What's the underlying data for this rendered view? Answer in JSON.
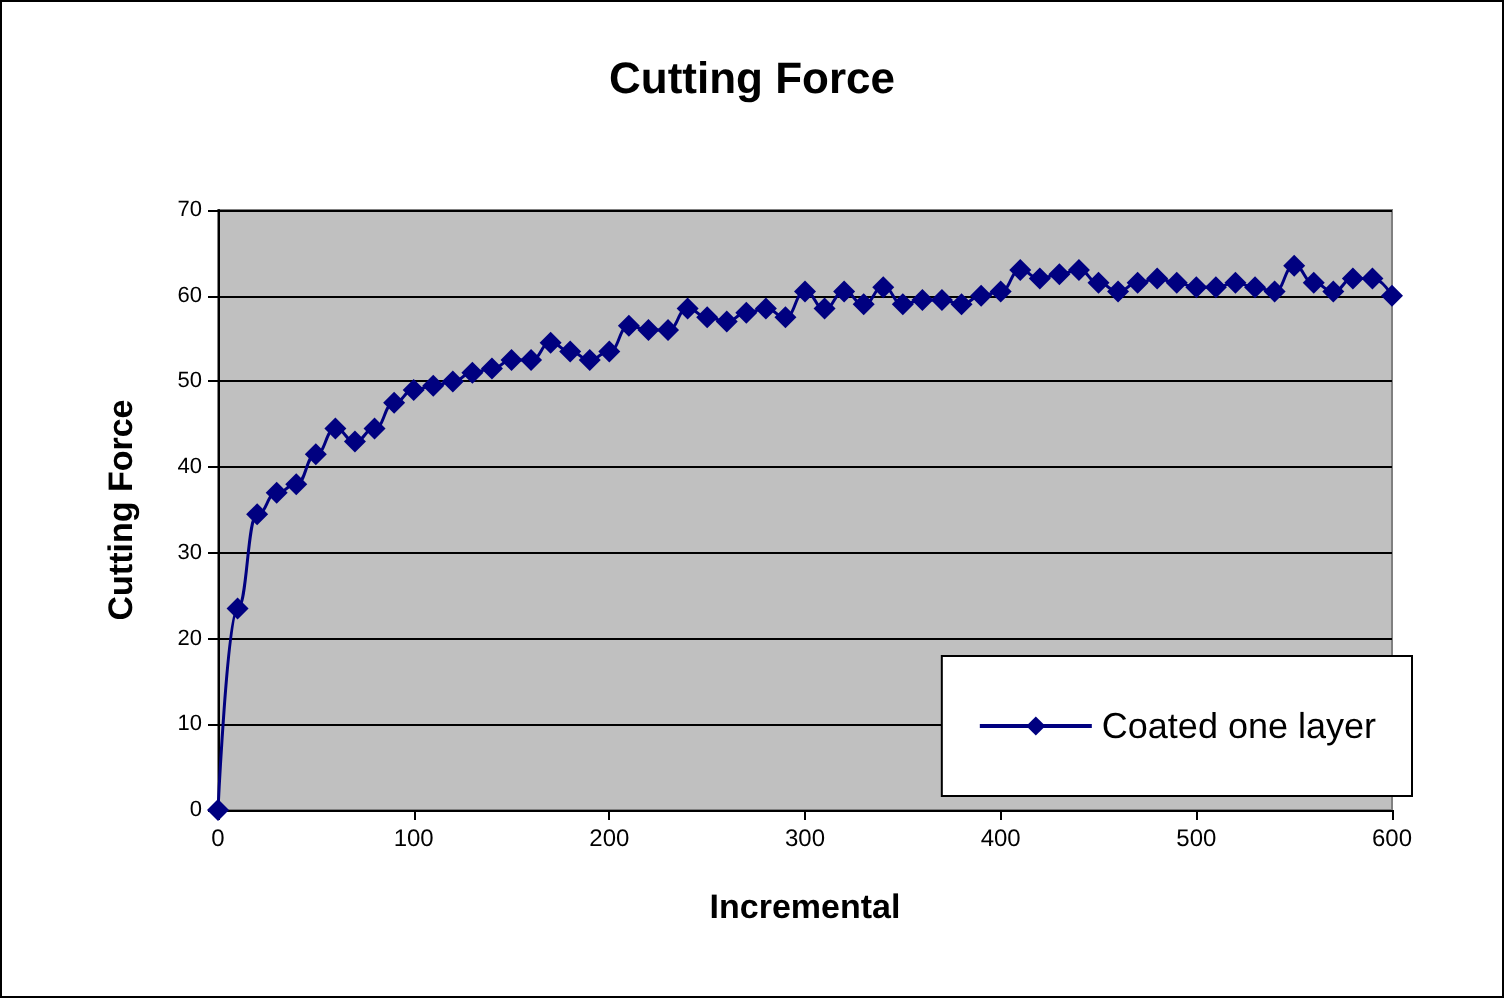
{
  "chart_data": {
    "type": "line",
    "title": "Cutting Force",
    "xlabel": "Incremental",
    "ylabel": "Cutting Force",
    "x": [
      0,
      10,
      20,
      30,
      40,
      50,
      60,
      70,
      80,
      90,
      100,
      110,
      120,
      130,
      140,
      150,
      160,
      170,
      180,
      190,
      200,
      210,
      220,
      230,
      240,
      250,
      260,
      270,
      280,
      290,
      300,
      310,
      320,
      330,
      340,
      350,
      360,
      370,
      380,
      390,
      400,
      410,
      420,
      430,
      440,
      450,
      460,
      470,
      480,
      490,
      500,
      510,
      520,
      530,
      540,
      550,
      560,
      570,
      580,
      590,
      600
    ],
    "series": [
      {
        "name": "Coated one layer",
        "color": "#000080",
        "values": [
          0,
          23.5,
          34.5,
          37,
          38,
          41.5,
          44.5,
          43,
          44.5,
          47.5,
          49,
          49.5,
          50,
          51,
          51.5,
          52.5,
          52.5,
          54.5,
          53.5,
          52.5,
          53.5,
          56.5,
          56,
          56,
          58.5,
          57.5,
          57,
          58,
          58.5,
          57.5,
          60.5,
          58.5,
          60.5,
          59,
          61,
          59,
          59.5,
          59.5,
          59,
          60,
          60.5,
          63,
          62,
          62.5,
          63,
          61.5,
          60.5,
          61.5,
          62,
          61.5,
          61,
          61,
          61.5,
          61,
          60.5,
          63.5,
          61.5,
          60.5,
          62,
          62,
          60
        ]
      }
    ],
    "xlim": [
      0,
      600
    ],
    "xticks": [
      0,
      100,
      200,
      300,
      400,
      500,
      600
    ],
    "ylim": [
      0,
      70
    ],
    "yticks": [
      0,
      10,
      20,
      30,
      40,
      50,
      60,
      70
    ],
    "grid": "y",
    "legend": "bottom right",
    "marker": "diamond",
    "line_style": "solid"
  }
}
